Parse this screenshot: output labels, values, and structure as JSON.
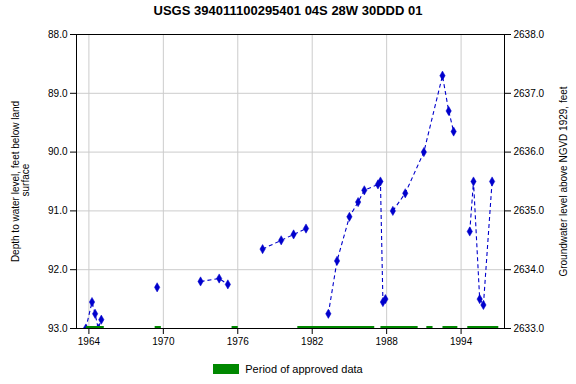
{
  "chart_data": {
    "type": "line",
    "title": "USGS 394011100295401 04S 28W 30DDD 01",
    "ylabel": "Depth to water level, feet below land\n surface",
    "y2label": "Groundwater level above NGVD 1929, feet",
    "xlim": [
      1963.0,
      1997.5
    ],
    "xticks": [
      1964,
      1970,
      1976,
      1982,
      1988,
      1994
    ],
    "ylim": [
      93.0,
      88.0
    ],
    "yticks": [
      {
        "value": 88.0,
        "label": "88.0"
      },
      {
        "value": 89.0,
        "label": "89.0"
      },
      {
        "value": 90.0,
        "label": "90.0"
      },
      {
        "value": 91.0,
        "label": "91.0"
      },
      {
        "value": 92.0,
        "label": "92.0"
      },
      {
        "value": 93.0,
        "label": "93.0"
      }
    ],
    "y2lim": [
      2633.0,
      2638.0
    ],
    "y2ticks": [
      {
        "value": 2633.0,
        "label": "2633.0"
      },
      {
        "value": 2634.0,
        "label": "2634.0"
      },
      {
        "value": 2635.0,
        "label": "2635.0"
      },
      {
        "value": 2636.0,
        "label": "2636.0"
      },
      {
        "value": 2637.0,
        "label": "2637.0"
      },
      {
        "value": 2638.0,
        "label": "2638.0"
      }
    ],
    "grid": true,
    "legend": "bottom",
    "series": [
      {
        "color": "#0000cc",
        "marker": "diamond",
        "line_style": "dashed",
        "x": [
          1963.75,
          1964.25,
          1964.5,
          1964.75,
          1965.0,
          null,
          1969.5,
          null,
          1973.0,
          1974.5,
          1975.2,
          null,
          1978.0,
          1979.5,
          1980.5,
          1981.5,
          null,
          1983.3,
          1984.0,
          1985.0,
          1985.7,
          1986.2,
          1987.3,
          1987.5,
          1987.7,
          1987.9,
          null,
          1988.5,
          1989.5,
          1991.0,
          1992.5,
          1993.0,
          1993.4,
          null,
          1994.7,
          1995.0,
          1995.5,
          1995.8,
          1996.5
        ],
        "values": [
          93.0,
          92.55,
          92.75,
          93.0,
          92.85,
          null,
          92.3,
          null,
          92.2,
          92.15,
          92.25,
          null,
          91.65,
          91.5,
          91.4,
          91.3,
          null,
          92.75,
          91.85,
          91.1,
          90.85,
          90.65,
          90.55,
          90.5,
          92.55,
          92.5,
          null,
          91.0,
          90.7,
          90.0,
          88.7,
          89.3,
          89.65,
          null,
          91.35,
          90.5,
          92.5,
          92.6,
          90.5
        ]
      },
      {
        "name": "Period of approved data",
        "color": "#008800",
        "line_style": "solid",
        "x": [
          1963.75,
          1965.2,
          null,
          1969.3,
          1969.8,
          null,
          1975.5,
          1976.0,
          null,
          1980.8,
          1987.0,
          null,
          1987.5,
          1990.5,
          null,
          1991.2,
          1991.7,
          null,
          1992.5,
          1993.7,
          null,
          1994.5,
          1997.0
        ],
        "values": [
          93.0,
          93.0,
          null,
          93.0,
          93.0,
          null,
          93.0,
          93.0,
          null,
          93.0,
          93.0,
          null,
          93.0,
          93.0,
          null,
          93.0,
          93.0,
          null,
          93.0,
          93.0,
          null,
          93.0,
          93.0
        ]
      }
    ]
  }
}
